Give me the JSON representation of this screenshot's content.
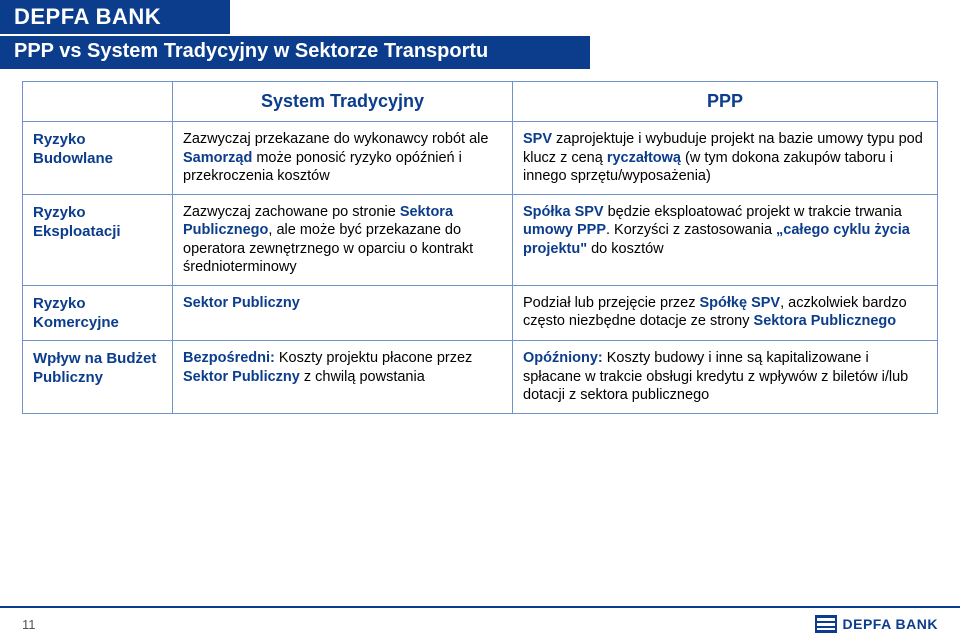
{
  "header": {
    "brand": "DEPFA BANK",
    "subtitle": "PPP vs System Tradycyjny w Sektorze Transportu"
  },
  "table": {
    "col_headers": [
      "",
      "System Tradycyjny",
      "PPP"
    ],
    "rows": [
      {
        "label": "Ryzyko Budowlane",
        "left_parts": [
          {
            "t": "Zazwyczaj przekazane do wykonawcy robót ale ",
            "b": false
          },
          {
            "t": "Samorząd",
            "b": true
          },
          {
            "t": " może ponosić ryzyko opóźnień i przekroczenia kosztów",
            "b": false
          }
        ],
        "right_parts": [
          {
            "t": "SPV",
            "b": true
          },
          {
            "t": " zaprojektuje i wybuduje projekt na bazie umowy typu pod klucz z ceną ",
            "b": false
          },
          {
            "t": "ryczałtową",
            "b": true
          },
          {
            "t": " (w tym dokona zakupów taboru i innego sprzętu/wyposażenia)",
            "b": false
          }
        ]
      },
      {
        "label": "Ryzyko Eksploatacji",
        "left_parts": [
          {
            "t": "Zazwyczaj zachowane po stronie ",
            "b": false
          },
          {
            "t": "Sektora Publicznego",
            "b": true
          },
          {
            "t": ", ale może być przekazane do operatora zewnętrznego w oparciu o kontrakt średnioterminowy",
            "b": false
          }
        ],
        "right_parts": [
          {
            "t": "Spółka SPV",
            "b": true
          },
          {
            "t": " będzie eksploatować projekt w trakcie trwania ",
            "b": false
          },
          {
            "t": "umowy PPP",
            "b": true
          },
          {
            "t": ". Korzyści z zastosowania ",
            "b": false
          },
          {
            "t": "„całego cyklu życia projektu\"",
            "b": true
          },
          {
            "t": " do kosztów",
            "b": false
          }
        ]
      },
      {
        "label": "Ryzyko Komercyjne",
        "left_parts": [
          {
            "t": "Sektor Publiczny",
            "b": true
          }
        ],
        "right_parts": [
          {
            "t": "Podział lub przejęcie przez ",
            "b": false
          },
          {
            "t": "Spółkę SPV",
            "b": true
          },
          {
            "t": ", aczkolwiek bardzo często niezbędne dotacje ze strony ",
            "b": false
          },
          {
            "t": "Sektora Publicznego",
            "b": true
          }
        ]
      },
      {
        "label": "Wpływ na Budżet Publiczny",
        "left_parts": [
          {
            "t": "Bezpośredni: ",
            "b": true
          },
          {
            "t": "Koszty projektu płacone przez ",
            "b": false
          },
          {
            "t": "Sektor Publiczny",
            "b": true
          },
          {
            "t": " z chwilą powstania",
            "b": false
          }
        ],
        "right_parts": [
          {
            "t": "Opóźniony: ",
            "b": true
          },
          {
            "t": "Koszty budowy i inne są kapitalizowane i spłacane w trakcie obsługi kredytu z wpływów z biletów i/lub dotacji z sektora publicznego",
            "b": false
          }
        ]
      }
    ]
  },
  "footer": {
    "page_number": "11",
    "logo_text": "DEPFA BANK"
  },
  "style": {
    "brand_color": "#0b3d8c",
    "border_color": "#7094c9",
    "background": "#ffffff"
  }
}
